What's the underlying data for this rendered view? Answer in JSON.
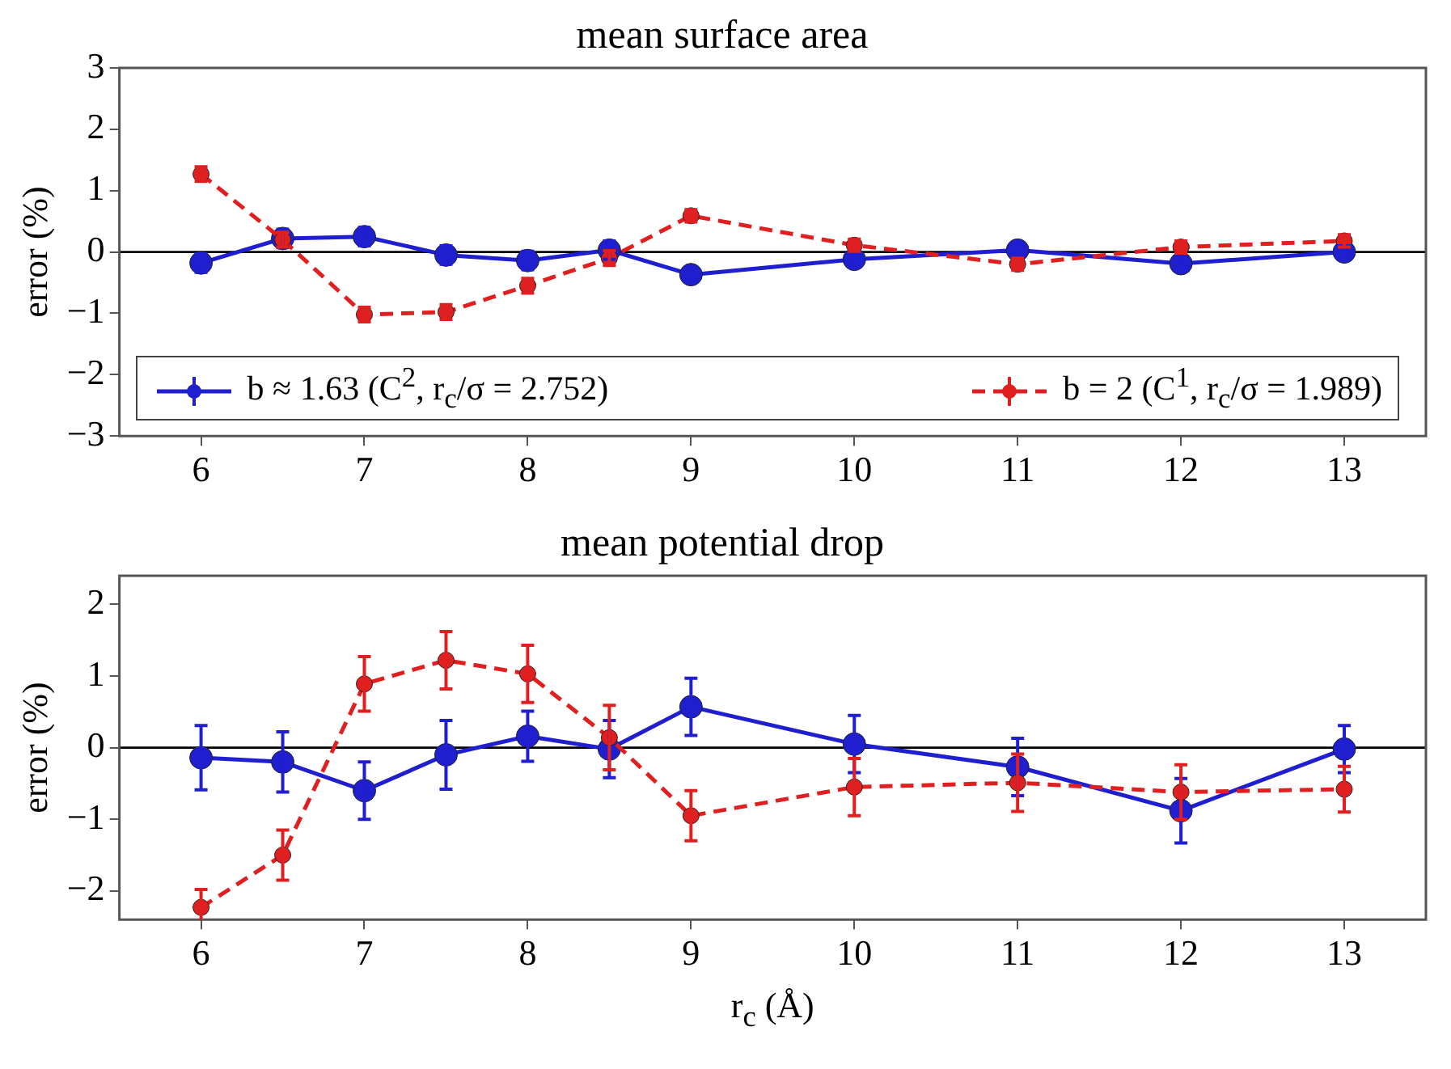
{
  "chart_data": [
    {
      "type": "line",
      "title": "mean surface area",
      "ylabel": "error (%)",
      "x": [
        6,
        6.5,
        7,
        7.5,
        8,
        8.5,
        9,
        10,
        11,
        12,
        13
      ],
      "xlim": [
        5.5,
        13.5
      ],
      "xticks": [
        6,
        7,
        8,
        9,
        10,
        11,
        12,
        13
      ],
      "ylim": [
        -3,
        3
      ],
      "yticks": [
        -3,
        -2,
        -1,
        0,
        1,
        2,
        3
      ],
      "grid": false,
      "marker": "circle",
      "legend": "bottom",
      "ref_lines": [
        {
          "axis": "y",
          "value": 0,
          "color": "#000000"
        }
      ],
      "series": [
        {
          "name": "b ≈ 1.63 (C$^{2}$, r$_{c}$/σ = 2.752)",
          "color": "#1f1fd0",
          "line_style": "solid",
          "values": [
            -0.18,
            0.22,
            0.25,
            -0.05,
            -0.14,
            0.03,
            -0.37,
            -0.12,
            0.03,
            -0.19,
            0
          ],
          "errors": [
            0.15,
            0.15,
            0.15,
            0.15,
            0.15,
            0.15,
            0.12,
            0.12,
            0.12,
            0.12,
            0.1
          ]
        },
        {
          "name": "b = 2 (C$^{1}$, r$_{c}$/σ = 1.989)",
          "color": "#e02020",
          "line_style": "dashed",
          "values": [
            1.27,
            0.2,
            -1.02,
            -0.98,
            -0.55,
            -0.1,
            0.59,
            0.11,
            -0.2,
            0.08,
            0.18
          ],
          "errors": [
            0.12,
            0.12,
            0.12,
            0.12,
            0.12,
            0.12,
            0.1,
            0.1,
            0.1,
            0.1,
            0.1
          ]
        }
      ]
    },
    {
      "type": "line",
      "title": "mean potential drop",
      "ylabel": "error (%)",
      "xlabel": "r$_{c}$ (Å)",
      "x": [
        6,
        6.5,
        7,
        7.5,
        8,
        8.5,
        9,
        10,
        11,
        12,
        13
      ],
      "xlim": [
        5.5,
        13.5
      ],
      "xticks": [
        6,
        7,
        8,
        9,
        10,
        11,
        12,
        13
      ],
      "ylim": [
        -2.4,
        2.4
      ],
      "yticks": [
        -2,
        -1,
        0,
        1,
        2
      ],
      "grid": false,
      "marker": "circle",
      "ref_lines": [
        {
          "axis": "y",
          "value": 0,
          "color": "#000000"
        }
      ],
      "series": [
        {
          "color": "#1f1fd0",
          "line_style": "solid",
          "values": [
            -0.14,
            -0.2,
            -0.6,
            -0.1,
            0.16,
            -0.02,
            0.57,
            0.05,
            -0.27,
            -0.88,
            -0.02
          ],
          "errors": [
            0.45,
            0.42,
            0.4,
            0.48,
            0.35,
            0.4,
            0.4,
            0.4,
            0.4,
            0.45,
            0.33
          ]
        },
        {
          "color": "#e02020",
          "line_style": "dashed",
          "values": [
            -2.23,
            -1.5,
            0.89,
            1.22,
            1.03,
            0.14,
            -0.95,
            -0.55,
            -0.49,
            -0.62,
            -0.58
          ],
          "errors": [
            0.25,
            0.35,
            0.38,
            0.4,
            0.4,
            0.45,
            0.35,
            0.4,
            0.4,
            0.38,
            0.32
          ]
        }
      ]
    }
  ]
}
